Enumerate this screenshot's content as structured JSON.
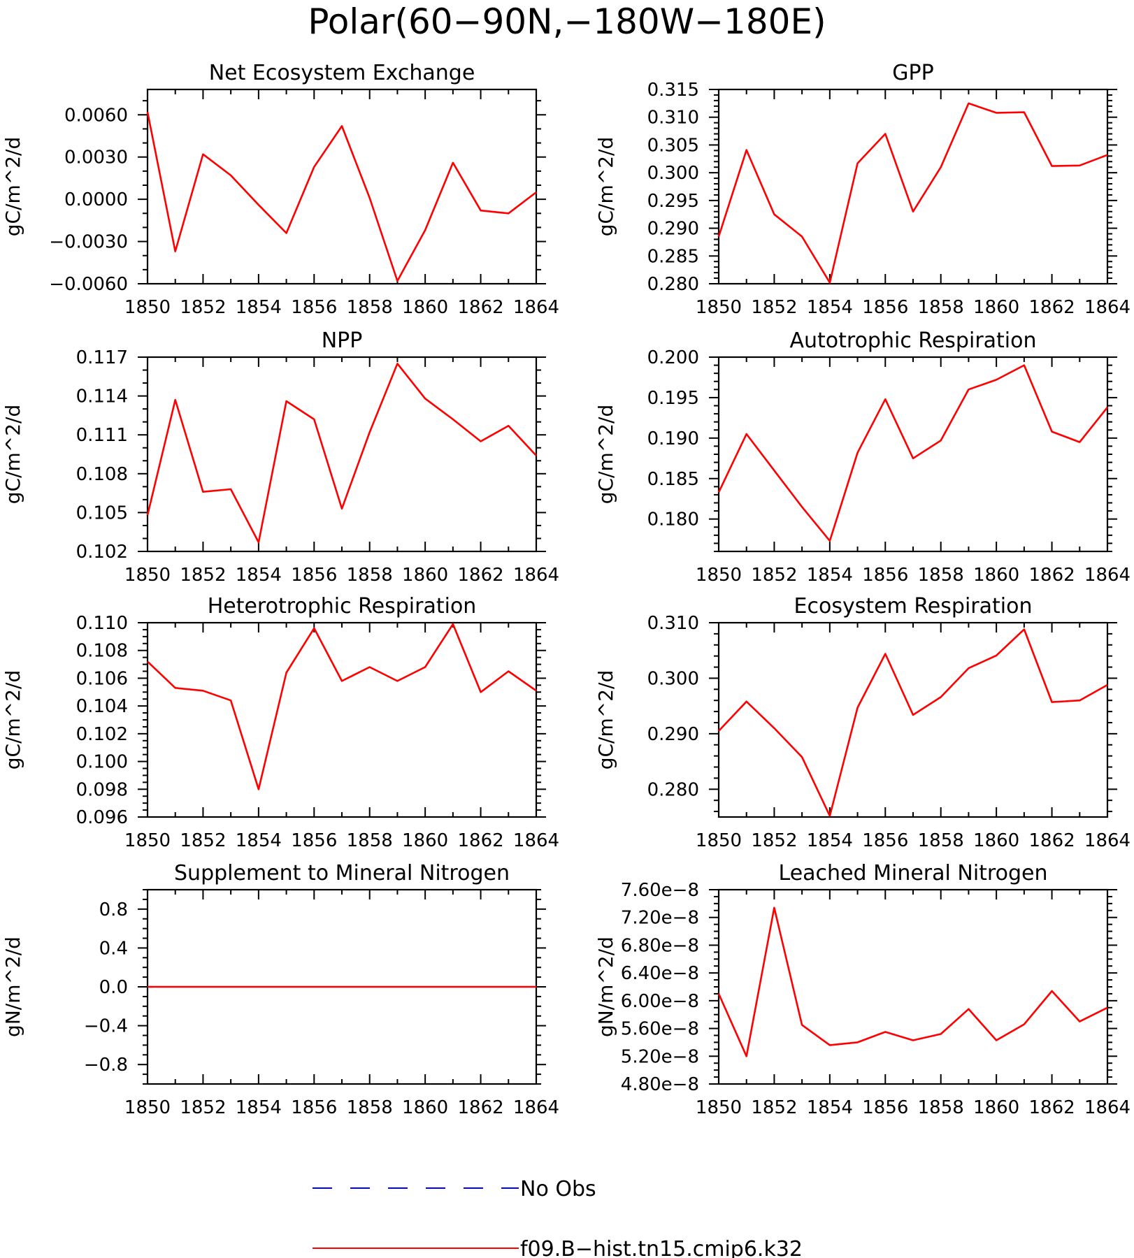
{
  "figure": {
    "title": "Polar(60−90N,−180W−180E)"
  },
  "legend": [
    {
      "label": "No Obs",
      "color": "#0000ff",
      "dash": true
    },
    {
      "label": "f09.B−hist.tn15.cmip6.k32",
      "color": "#ff0000",
      "dash": false
    }
  ],
  "chart_data": [
    {
      "type": "line",
      "title": "Net Ecosystem Exchange",
      "ylabel": "gC/m^2/d",
      "xlim": [
        1850,
        1864
      ],
      "ylim": [
        -0.006,
        0.0078
      ],
      "xticks": [
        1850,
        1852,
        1854,
        1856,
        1858,
        1860,
        1862,
        1864
      ],
      "xtick_labels": [
        "1850",
        "1852",
        "1854",
        "1856",
        "1858",
        "1860",
        "1862",
        "1864"
      ],
      "yticks": [
        -0.006,
        -0.003,
        0.0,
        0.003,
        0.006
      ],
      "ytick_labels": [
        "−0.0060",
        "−0.0030",
        "0.0000",
        "0.0030",
        "0.0060"
      ],
      "yminor": 0.001,
      "x": [
        1850,
        1851,
        1852,
        1853,
        1854,
        1855,
        1856,
        1857,
        1858,
        1859,
        1860,
        1861,
        1862,
        1863,
        1864
      ],
      "series": [
        {
          "name": "f09.B−hist.tn15.cmip6.k32",
          "color": "#ff0000",
          "values": [
            0.0062,
            -0.0037,
            0.0032,
            0.0017,
            -0.0004,
            -0.0024,
            0.0023,
            0.0052,
            0.0001,
            -0.0058,
            -0.0022,
            0.0026,
            -0.0008,
            -0.001,
            0.0005
          ]
        }
      ]
    },
    {
      "type": "line",
      "title": "GPP",
      "ylabel": "gC/m^2/d",
      "xlim": [
        1850,
        1864
      ],
      "ylim": [
        0.28,
        0.315
      ],
      "xticks": [
        1850,
        1852,
        1854,
        1856,
        1858,
        1860,
        1862,
        1864
      ],
      "xtick_labels": [
        "1850",
        "1852",
        "1854",
        "1856",
        "1858",
        "1860",
        "1862",
        "1864"
      ],
      "yticks": [
        0.28,
        0.285,
        0.29,
        0.295,
        0.3,
        0.305,
        0.31,
        0.315
      ],
      "ytick_labels": [
        "0.280",
        "0.285",
        "0.290",
        "0.295",
        "0.300",
        "0.305",
        "0.310",
        "0.315"
      ],
      "yminor": 0.001,
      "x": [
        1850,
        1851,
        1852,
        1853,
        1854,
        1855,
        1856,
        1857,
        1858,
        1859,
        1860,
        1861,
        1862,
        1863,
        1864
      ],
      "series": [
        {
          "name": "f09.B−hist.tn15.cmip6.k32",
          "color": "#ff0000",
          "values": [
            0.2885,
            0.3041,
            0.2925,
            0.2885,
            0.2802,
            0.3017,
            0.307,
            0.293,
            0.301,
            0.3125,
            0.3108,
            0.3109,
            0.3012,
            0.3013,
            0.3032
          ]
        }
      ]
    },
    {
      "type": "line",
      "title": "NPP",
      "ylabel": "gC/m^2/d",
      "xlim": [
        1850,
        1864
      ],
      "ylim": [
        0.102,
        0.117
      ],
      "xticks": [
        1850,
        1852,
        1854,
        1856,
        1858,
        1860,
        1862,
        1864
      ],
      "xtick_labels": [
        "1850",
        "1852",
        "1854",
        "1856",
        "1858",
        "1860",
        "1862",
        "1864"
      ],
      "yticks": [
        0.102,
        0.105,
        0.108,
        0.111,
        0.114,
        0.117
      ],
      "ytick_labels": [
        "0.102",
        "0.105",
        "0.108",
        "0.111",
        "0.114",
        "0.117"
      ],
      "yminor": 0.001,
      "x": [
        1850,
        1851,
        1852,
        1853,
        1854,
        1855,
        1856,
        1857,
        1858,
        1859,
        1860,
        1861,
        1862,
        1863,
        1864
      ],
      "series": [
        {
          "name": "f09.B−hist.tn15.cmip6.k32",
          "color": "#ff0000",
          "values": [
            0.1048,
            0.1137,
            0.1066,
            0.1068,
            0.1027,
            0.1136,
            0.1122,
            0.1053,
            0.1112,
            0.1165,
            0.1138,
            0.1122,
            0.1105,
            0.1117,
            0.1094
          ]
        }
      ]
    },
    {
      "type": "line",
      "title": "Autotrophic Respiration",
      "ylabel": "gC/m^2/d",
      "xlim": [
        1850,
        1864
      ],
      "ylim": [
        0.176,
        0.2
      ],
      "xticks": [
        1850,
        1852,
        1854,
        1856,
        1858,
        1860,
        1862,
        1864
      ],
      "xtick_labels": [
        "1850",
        "1852",
        "1854",
        "1856",
        "1858",
        "1860",
        "1862",
        "1864"
      ],
      "yticks": [
        0.18,
        0.185,
        0.19,
        0.195,
        0.2
      ],
      "ytick_labels": [
        "0.180",
        "0.185",
        "0.190",
        "0.195",
        "0.200"
      ],
      "yminor": 0.001,
      "x": [
        1850,
        1851,
        1852,
        1853,
        1854,
        1855,
        1856,
        1857,
        1858,
        1859,
        1860,
        1861,
        1862,
        1863,
        1864
      ],
      "series": [
        {
          "name": "f09.B−hist.tn15.cmip6.k32",
          "color": "#ff0000",
          "values": [
            0.1833,
            0.1905,
            0.186,
            0.1815,
            0.1773,
            0.1882,
            0.1948,
            0.1875,
            0.1897,
            0.196,
            0.1972,
            0.199,
            0.1908,
            0.1895,
            0.1938
          ]
        }
      ]
    },
    {
      "type": "line",
      "title": "Heterotrophic Respiration",
      "ylabel": "gC/m^2/d",
      "xlim": [
        1850,
        1864
      ],
      "ylim": [
        0.096,
        0.11
      ],
      "xticks": [
        1850,
        1852,
        1854,
        1856,
        1858,
        1860,
        1862,
        1864
      ],
      "xtick_labels": [
        "1850",
        "1852",
        "1854",
        "1856",
        "1858",
        "1860",
        "1862",
        "1864"
      ],
      "yticks": [
        0.096,
        0.098,
        0.1,
        0.102,
        0.104,
        0.106,
        0.108,
        0.11
      ],
      "ytick_labels": [
        "0.096",
        "0.098",
        "0.100",
        "0.102",
        "0.104",
        "0.106",
        "0.108",
        "0.110"
      ],
      "yminor": 0.0005,
      "x": [
        1850,
        1851,
        1852,
        1853,
        1854,
        1855,
        1856,
        1857,
        1858,
        1859,
        1860,
        1861,
        1862,
        1863,
        1864
      ],
      "series": [
        {
          "name": "f09.B−hist.tn15.cmip6.k32",
          "color": "#ff0000",
          "values": [
            0.1072,
            0.1053,
            0.1051,
            0.1044,
            0.098,
            0.1064,
            0.1096,
            0.1058,
            0.1068,
            0.1058,
            0.1068,
            0.1099,
            0.105,
            0.1065,
            0.1051
          ]
        }
      ]
    },
    {
      "type": "line",
      "title": "Ecosystem Respiration",
      "ylabel": "gC/m^2/d",
      "xlim": [
        1850,
        1864
      ],
      "ylim": [
        0.275,
        0.31
      ],
      "xticks": [
        1850,
        1852,
        1854,
        1856,
        1858,
        1860,
        1862,
        1864
      ],
      "xtick_labels": [
        "1850",
        "1852",
        "1854",
        "1856",
        "1858",
        "1860",
        "1862",
        "1864"
      ],
      "yticks": [
        0.28,
        0.29,
        0.3,
        0.31
      ],
      "ytick_labels": [
        "0.280",
        "0.290",
        "0.300",
        "0.310"
      ],
      "yminor": 0.002,
      "x": [
        1850,
        1851,
        1852,
        1853,
        1854,
        1855,
        1856,
        1857,
        1858,
        1859,
        1860,
        1861,
        1862,
        1863,
        1864
      ],
      "series": [
        {
          "name": "f09.B−hist.tn15.cmip6.k32",
          "color": "#ff0000",
          "values": [
            0.2905,
            0.2958,
            0.291,
            0.2858,
            0.2752,
            0.2947,
            0.3044,
            0.2934,
            0.2966,
            0.3018,
            0.3041,
            0.3088,
            0.2957,
            0.296,
            0.2988
          ]
        }
      ]
    },
    {
      "type": "line",
      "title": "Supplement to Mineral Nitrogen",
      "ylabel": "gN/m^2/d",
      "xlim": [
        1850,
        1864
      ],
      "ylim": [
        -1.0,
        1.0
      ],
      "xticks": [
        1850,
        1852,
        1854,
        1856,
        1858,
        1860,
        1862,
        1864
      ],
      "xtick_labels": [
        "1850",
        "1852",
        "1854",
        "1856",
        "1858",
        "1860",
        "1862",
        "1864"
      ],
      "yticks": [
        -0.8,
        -0.4,
        0.0,
        0.4,
        0.8
      ],
      "ytick_labels": [
        "−0.8",
        "−0.4",
        "0.0",
        "0.4",
        "0.8"
      ],
      "yminor": 0.1,
      "x": [
        1850,
        1851,
        1852,
        1853,
        1854,
        1855,
        1856,
        1857,
        1858,
        1859,
        1860,
        1861,
        1862,
        1863,
        1864
      ],
      "series": [
        {
          "name": "f09.B−hist.tn15.cmip6.k32",
          "color": "#ff0000",
          "values": [
            0,
            0,
            0,
            0,
            0,
            0,
            0,
            0,
            0,
            0,
            0,
            0,
            0,
            0,
            0
          ]
        }
      ]
    },
    {
      "type": "line",
      "title": "Leached Mineral Nitrogen",
      "ylabel": "gN/m^2/d",
      "xlim": [
        1850,
        1864
      ],
      "ylim": [
        4.8e-08,
        7.6e-08
      ],
      "xticks": [
        1850,
        1852,
        1854,
        1856,
        1858,
        1860,
        1862,
        1864
      ],
      "xtick_labels": [
        "1850",
        "1852",
        "1854",
        "1856",
        "1858",
        "1860",
        "1862",
        "1864"
      ],
      "yticks": [
        4.8e-08,
        5.2e-08,
        5.6e-08,
        6e-08,
        6.4e-08,
        6.8e-08,
        7.2e-08,
        7.6e-08
      ],
      "ytick_labels": [
        "4.80e−8",
        "5.20e−8",
        "5.60e−8",
        "6.00e−8",
        "6.40e−8",
        "6.80e−8",
        "7.20e−8",
        "7.60e−8"
      ],
      "yminor": 1e-09,
      "x": [
        1850,
        1851,
        1852,
        1853,
        1854,
        1855,
        1856,
        1857,
        1858,
        1859,
        1860,
        1861,
        1862,
        1863,
        1864
      ],
      "series": [
        {
          "name": "f09.B−hist.tn15.cmip6.k32",
          "color": "#ff0000",
          "values": [
            6.1e-08,
            5.2e-08,
            7.34e-08,
            5.65e-08,
            5.36e-08,
            5.4e-08,
            5.55e-08,
            5.43e-08,
            5.52e-08,
            5.88e-08,
            5.43e-08,
            5.66e-08,
            6.14e-08,
            5.7e-08,
            5.9e-08
          ]
        }
      ]
    }
  ]
}
